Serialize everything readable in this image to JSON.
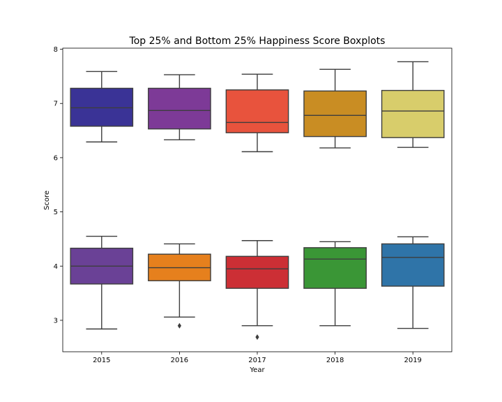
{
  "chart_data": {
    "type": "box",
    "title": "Top 25% and Bottom 25% Happiness Score Boxplots",
    "xlabel": "Year",
    "ylabel": "Score",
    "categories": [
      "2015",
      "2016",
      "2017",
      "2018",
      "2019"
    ],
    "ylim": [
      2.42,
      8.02
    ],
    "yticks": [
      3,
      4,
      5,
      6,
      7,
      8
    ],
    "grid": false,
    "legend": "none",
    "groups": [
      {
        "name": "Top 25%",
        "boxes": [
          {
            "category": "2015",
            "whisker_low": 6.29,
            "q1": 6.58,
            "median": 6.92,
            "q3": 7.28,
            "whisker_high": 7.59,
            "outliers": [],
            "color": "#3a3396"
          },
          {
            "category": "2016",
            "whisker_low": 6.33,
            "q1": 6.53,
            "median": 6.87,
            "q3": 7.28,
            "whisker_high": 7.53,
            "outliers": [],
            "color": "#7d3a97"
          },
          {
            "category": "2017",
            "whisker_low": 6.11,
            "q1": 6.46,
            "median": 6.65,
            "q3": 7.25,
            "whisker_high": 7.54,
            "outliers": [],
            "color": "#e8533d"
          },
          {
            "category": "2018",
            "whisker_low": 6.18,
            "q1": 6.39,
            "median": 6.78,
            "q3": 7.23,
            "whisker_high": 7.63,
            "outliers": [],
            "color": "#c98d23"
          },
          {
            "category": "2019",
            "whisker_low": 6.19,
            "q1": 6.37,
            "median": 6.86,
            "q3": 7.24,
            "whisker_high": 7.77,
            "outliers": [],
            "color": "#d8cd6b"
          }
        ]
      },
      {
        "name": "Bottom 25%",
        "boxes": [
          {
            "category": "2015",
            "whisker_low": 2.84,
            "q1": 3.67,
            "median": 4.0,
            "q3": 4.33,
            "whisker_high": 4.55,
            "outliers": [],
            "color": "#6a4196"
          },
          {
            "category": "2016",
            "whisker_low": 3.06,
            "q1": 3.73,
            "median": 3.97,
            "q3": 4.22,
            "whisker_high": 4.41,
            "outliers": [
              2.9
            ],
            "color": "#e6801d"
          },
          {
            "category": "2017",
            "whisker_low": 2.9,
            "q1": 3.59,
            "median": 3.95,
            "q3": 4.18,
            "whisker_high": 4.47,
            "outliers": [
              2.69
            ],
            "color": "#cc2f35"
          },
          {
            "category": "2018",
            "whisker_low": 2.9,
            "q1": 3.59,
            "median": 4.13,
            "q3": 4.34,
            "whisker_high": 4.45,
            "outliers": [],
            "color": "#3a9636"
          },
          {
            "category": "2019",
            "whisker_low": 2.85,
            "q1": 3.63,
            "median": 4.16,
            "q3": 4.41,
            "whisker_high": 4.54,
            "outliers": [],
            "color": "#2f74a8"
          }
        ]
      }
    ]
  }
}
